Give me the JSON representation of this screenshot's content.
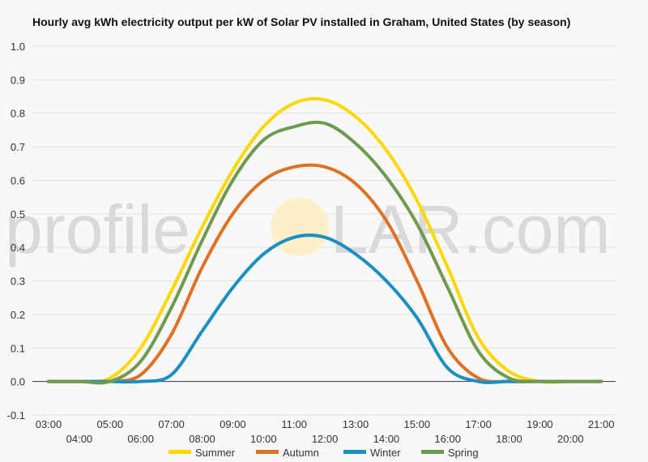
{
  "chart_data": {
    "type": "line",
    "title": "Hourly avg kWh electricity output per kW of Solar PV installed in Graham, United States (by season)",
    "watermark": {
      "left": "profile",
      "right": "LAR.com"
    },
    "x": [
      "03:00",
      "04:00",
      "05:00",
      "06:00",
      "07:00",
      "08:00",
      "09:00",
      "10:00",
      "11:00",
      "12:00",
      "13:00",
      "14:00",
      "15:00",
      "16:00",
      "17:00",
      "18:00",
      "19:00",
      "20:00",
      "21:00"
    ],
    "ylim": [
      -0.1,
      1.0
    ],
    "yticks": [
      -0.1,
      0.0,
      0.1,
      0.2,
      0.3,
      0.4,
      0.5,
      0.6,
      0.7,
      0.8,
      0.9,
      1.0
    ],
    "ytick_labels": [
      "-0.1",
      "0.0",
      "0.1",
      "0.2",
      "0.3",
      "0.4",
      "0.5",
      "0.6",
      "0.7",
      "0.8",
      "0.9",
      "1.0"
    ],
    "grid": true,
    "legend_position": "bottom",
    "series": [
      {
        "name": "Summer",
        "color": "#ffd700",
        "values": [
          0.0,
          0.0,
          0.01,
          0.1,
          0.27,
          0.46,
          0.63,
          0.76,
          0.83,
          0.84,
          0.79,
          0.69,
          0.54,
          0.34,
          0.13,
          0.03,
          0.0,
          0.0,
          0.0
        ]
      },
      {
        "name": "Autumn",
        "color": "#e07022",
        "values": [
          0.0,
          0.0,
          0.0,
          0.02,
          0.14,
          0.34,
          0.5,
          0.6,
          0.64,
          0.64,
          0.59,
          0.48,
          0.3,
          0.1,
          0.01,
          0.0,
          0.0,
          0.0,
          0.0
        ]
      },
      {
        "name": "Winter",
        "color": "#1a8fc2",
        "values": [
          0.0,
          0.0,
          0.0,
          0.0,
          0.02,
          0.15,
          0.28,
          0.38,
          0.43,
          0.43,
          0.38,
          0.3,
          0.19,
          0.04,
          0.0,
          0.0,
          0.0,
          0.0,
          0.0
        ]
      },
      {
        "name": "Spring",
        "color": "#6e9a4f",
        "values": [
          0.0,
          0.0,
          0.0,
          0.06,
          0.22,
          0.42,
          0.6,
          0.72,
          0.76,
          0.77,
          0.71,
          0.61,
          0.47,
          0.28,
          0.09,
          0.01,
          0.0,
          0.0,
          0.0
        ]
      }
    ]
  }
}
